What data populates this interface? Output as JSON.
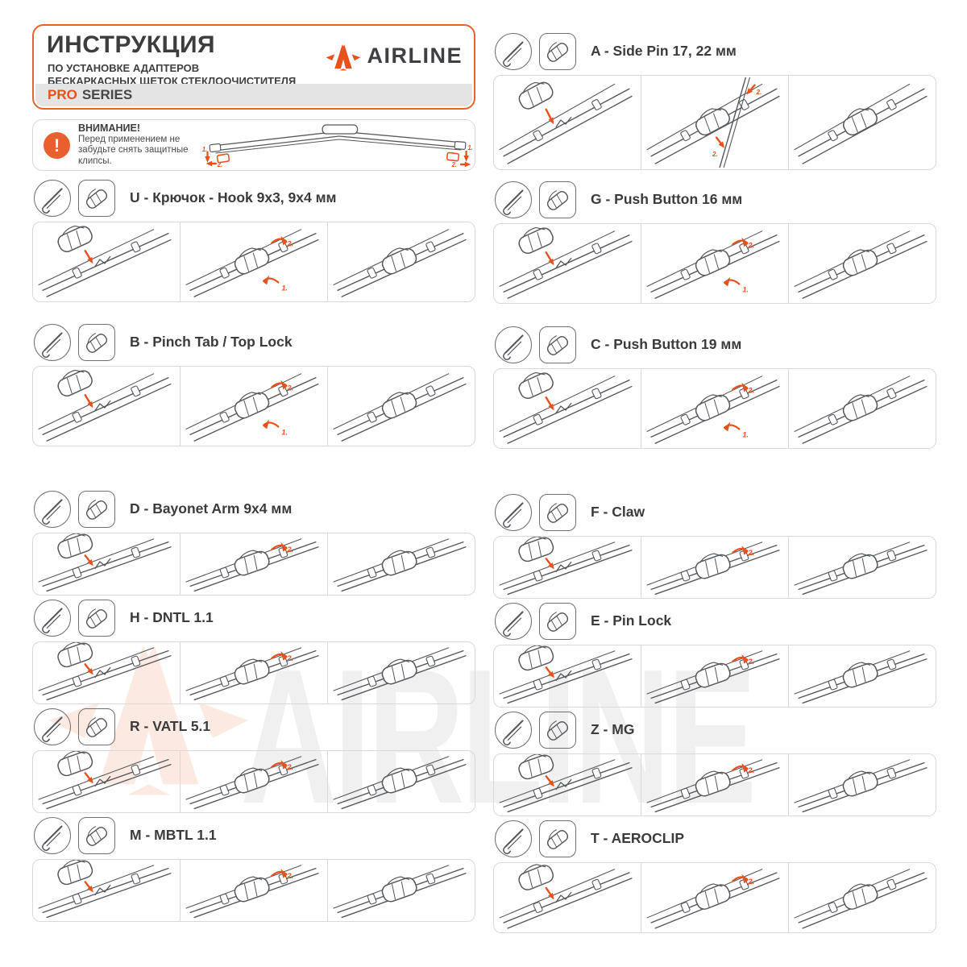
{
  "header": {
    "title": "ИНСТРУКЦИЯ",
    "subtitle_line1": "ПО УСТАНОВКЕ АДАПТЕРОВ",
    "subtitle_line2": "БЕСКАРКАСНЫХ ЩЕТОК СТЕКЛООЧИСТИТЕЛЯ",
    "series_highlight": "PRO",
    "series_rest": "SERIES",
    "brand": "AIRLINE"
  },
  "warning": {
    "title": "ВНИМАНИЕ!",
    "line1": "Перед применением не",
    "line2": "забудьте снять защитные",
    "line3": "клипсы.",
    "exclamation": "!"
  },
  "illustration": {
    "step1_label": "1.",
    "step2_label": "2."
  },
  "watermark": {
    "text": "AIRLINE"
  },
  "colors": {
    "accent": "#E8511C",
    "title_text": "#3D3D3D",
    "panel_border": "#D9D9D9",
    "strip_bg": "#E4E4E4",
    "drawing_line": "#55585C"
  },
  "sections": [
    {
      "code": "U",
      "title": "U - Крючок - Hook 9x3, 9x4 мм",
      "column": "left",
      "size": "tall",
      "steps": [
        "place",
        "lock",
        "done"
      ]
    },
    {
      "code": "B",
      "title": "B - Pinch Tab / Top Lock",
      "column": "left",
      "size": "tall",
      "steps": [
        "place",
        "lock",
        "done"
      ]
    },
    {
      "code": "D",
      "title": "D - Bayonet Arm 9x4 мм",
      "column": "left",
      "size": "short",
      "steps": [
        "place",
        "lock",
        "done"
      ]
    },
    {
      "code": "H",
      "title": "H - DNTL 1.1",
      "column": "left",
      "size": "short",
      "steps": [
        "place",
        "lock",
        "done"
      ]
    },
    {
      "code": "R",
      "title": "R - VATL 5.1",
      "column": "left",
      "size": "short",
      "steps": [
        "place",
        "lock",
        "done"
      ]
    },
    {
      "code": "M",
      "title": "M - MBTL 1.1",
      "column": "left",
      "size": "short",
      "steps": [
        "place",
        "lock",
        "done"
      ]
    },
    {
      "code": "A",
      "title": "A - Side Pin 17, 22 мм",
      "column": "right",
      "size": "xtall",
      "steps": [
        "place",
        "arm",
        "done"
      ]
    },
    {
      "code": "G",
      "title": "G - Push Button 16 мм",
      "column": "right",
      "size": "tall",
      "steps": [
        "place",
        "lock",
        "done"
      ]
    },
    {
      "code": "C",
      "title": "C - Push Button 19 мм",
      "column": "right",
      "size": "tall",
      "steps": [
        "place",
        "lock",
        "done"
      ]
    },
    {
      "code": "F",
      "title": "F - Claw",
      "column": "right",
      "size": "short",
      "steps": [
        "place",
        "lock",
        "done"
      ]
    },
    {
      "code": "E",
      "title": "E - Pin Lock",
      "column": "right",
      "size": "short",
      "steps": [
        "place",
        "lock",
        "done"
      ]
    },
    {
      "code": "Z",
      "title": "Z - MG",
      "column": "right",
      "size": "short",
      "steps": [
        "place",
        "lock",
        "done"
      ]
    },
    {
      "code": "T",
      "title": "T - AEROCLIP",
      "column": "right",
      "size": "medium",
      "steps": [
        "place",
        "lock",
        "done"
      ]
    }
  ]
}
